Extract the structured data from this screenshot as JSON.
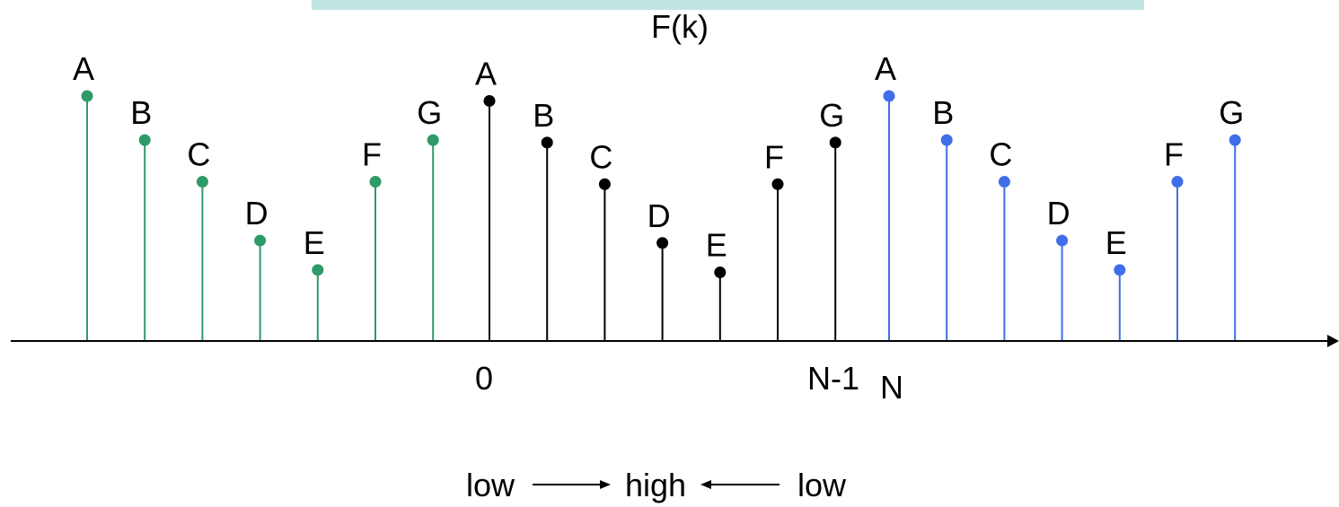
{
  "title": "F(k)",
  "colors": {
    "left_period": "#2e9a68",
    "main_period": "#000000",
    "right_period": "#3f6fe8",
    "top_band": "#bfe5e3",
    "axis": "#000000"
  },
  "periods": [
    {
      "name": "left-period",
      "color_key": "left_period",
      "samples": [
        {
          "label": "A",
          "value": 1.0
        },
        {
          "label": "B",
          "value": 0.82
        },
        {
          "label": "C",
          "value": 0.65
        },
        {
          "label": "D",
          "value": 0.41
        },
        {
          "label": "E",
          "value": 0.29
        },
        {
          "label": "F",
          "value": 0.65
        },
        {
          "label": "G",
          "value": 0.82
        }
      ]
    },
    {
      "name": "main-period",
      "color_key": "main_period",
      "samples": [
        {
          "label": "A",
          "value": 0.98
        },
        {
          "label": "B",
          "value": 0.81
        },
        {
          "label": "C",
          "value": 0.64
        },
        {
          "label": "D",
          "value": 0.4
        },
        {
          "label": "E",
          "value": 0.28
        },
        {
          "label": "F",
          "value": 0.64
        },
        {
          "label": "G",
          "value": 0.81
        }
      ]
    },
    {
      "name": "right-period",
      "color_key": "right_period",
      "samples": [
        {
          "label": "A",
          "value": 1.0
        },
        {
          "label": "B",
          "value": 0.82
        },
        {
          "label": "C",
          "value": 0.65
        },
        {
          "label": "D",
          "value": 0.41
        },
        {
          "label": "E",
          "value": 0.29
        },
        {
          "label": "F",
          "value": 0.65
        },
        {
          "label": "G",
          "value": 0.82
        }
      ]
    }
  ],
  "axis_labels": {
    "zero": "0",
    "n_minus_1": "N-1",
    "n": "N"
  },
  "caption": {
    "low_left": "low",
    "high": "high",
    "low_right": "low"
  }
}
